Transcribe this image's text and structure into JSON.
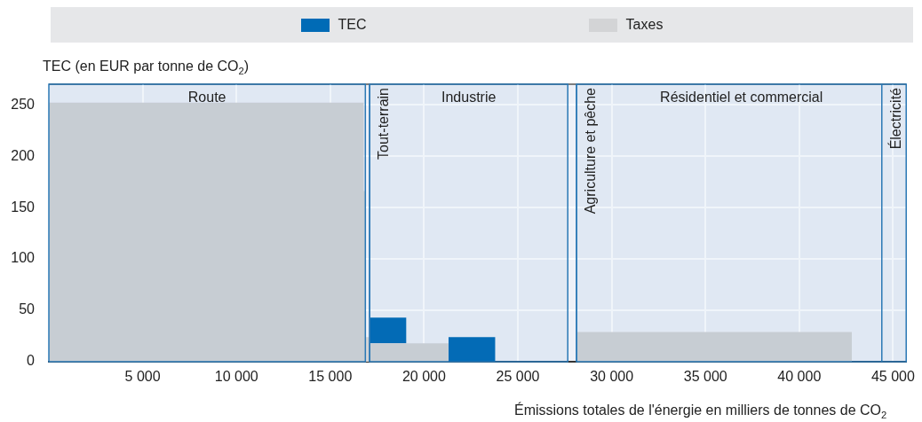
{
  "chart_data": {
    "type": "area",
    "stacked": true,
    "legend": "top",
    "grid": true,
    "xlabel": "Émissions totales de l'énergie en milliers de tonnes de CO$_{2}$",
    "ylabel": "TEC (en EUR par tonne de CO$_{2}$)",
    "x": [
      0,
      0,
      16780,
      16780,
      16870,
      16870,
      17100,
      17100,
      19060,
      19060,
      21300,
      21300,
      23800,
      23800,
      28150,
      28150,
      42800,
      42800
    ],
    "series": [
      {
        "name": "Taxes",
        "color": "#d3d4d6",
        "values": [
          0,
          252,
          252,
          166,
          166,
          24,
          24,
          18,
          18,
          18,
          18,
          0,
          0,
          0,
          0,
          29,
          29,
          0
        ]
      },
      {
        "name": "TEC",
        "color": "#006bb6",
        "values": [
          null,
          null,
          null,
          null,
          null,
          null,
          null,
          25,
          25,
          null,
          null,
          24,
          24,
          null,
          null,
          null,
          null,
          null
        ]
      }
    ],
    "xlim": [
      0,
      45700
    ],
    "xticks": [
      {
        "value": 5000,
        "label": "5 000"
      },
      {
        "value": 10000,
        "label": "10 000"
      },
      {
        "value": 15000,
        "label": "15 000"
      },
      {
        "value": 20000,
        "label": "20 000"
      },
      {
        "value": 25000,
        "label": "25 000"
      },
      {
        "value": 30000,
        "label": "30 000"
      },
      {
        "value": 35000,
        "label": "35 000"
      },
      {
        "value": 40000,
        "label": "40 000"
      },
      {
        "value": 45000,
        "label": "45 000"
      }
    ],
    "ylim": [
      0,
      270
    ],
    "yticks": [
      0,
      50,
      100,
      150,
      200,
      250
    ],
    "ref_lines": [
      {
        "axis": "x",
        "value": 17100,
        "label": "Tout-terrain",
        "color": "#2a78b5"
      },
      {
        "axis": "x",
        "value": 28130,
        "label": "Agriculture et pêche",
        "color": "#2a78b5"
      },
      {
        "axis": "x",
        "value": 44400,
        "label": "Électricité",
        "color": "#2a78b5"
      }
    ],
    "bands": [
      {
        "axis": "x",
        "from": 0,
        "to": 16870,
        "label": "Route",
        "color": "#2a78b5"
      },
      {
        "axis": "x",
        "from": 17100,
        "to": 27660,
        "label": "Industrie",
        "color": "#2a78b5"
      },
      {
        "axis": "x",
        "from": 28130,
        "to": 45700,
        "label": "Résidentiel et commercial",
        "color": "#2a78b5"
      }
    ]
  }
}
